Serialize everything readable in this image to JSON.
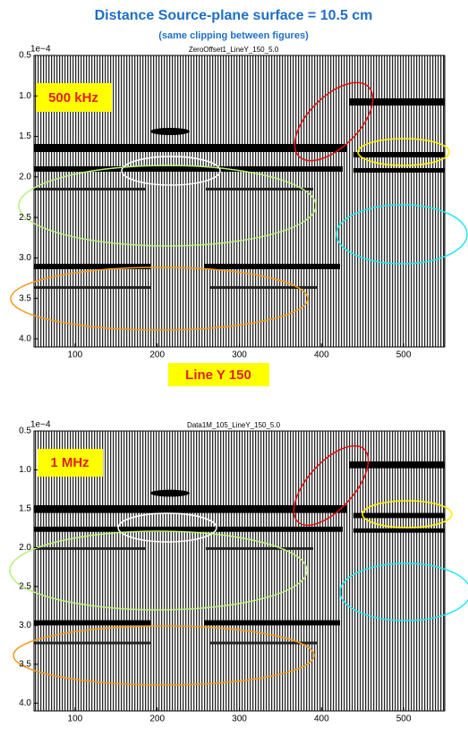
{
  "header": {
    "title": "Distance Source-plane surface = 10.5 cm",
    "subtitle": "(same clipping between figures)"
  },
  "middle_label": "Line Y 150",
  "panels": [
    {
      "title": "ZeroOffset1_LineY_150_5.0",
      "label": "500 kHz",
      "y_multiplier": "1e−4",
      "xlim": [
        50,
        550
      ],
      "ylim": [
        0.5,
        4.1
      ],
      "xticks": [
        100,
        200,
        300,
        400,
        500
      ],
      "yticks": [
        0.5,
        {
          "value": 1,
          "label": "1.0"
        },
        1.5,
        {
          "value": 2,
          "label": "2.0"
        },
        2.5,
        {
          "value": 3,
          "label": "3.0"
        },
        3.5,
        {
          "value": 4,
          "label": "4.0"
        }
      ]
    },
    {
      "title": "Data1M_105_LineY_150_5.0",
      "label": "1 MHz",
      "y_multiplier": "1e−4",
      "xlim": [
        50,
        550
      ],
      "ylim": [
        0.5,
        4.1
      ],
      "xticks": [
        100,
        200,
        300,
        400,
        500
      ],
      "yticks": [
        0.5,
        {
          "value": 1,
          "label": "1.0"
        },
        1.5,
        {
          "value": 2,
          "label": "2.0"
        },
        2.5,
        {
          "value": 3,
          "label": "3.0"
        },
        3.5,
        {
          "value": 4,
          "label": "4.0"
        }
      ]
    }
  ]
}
